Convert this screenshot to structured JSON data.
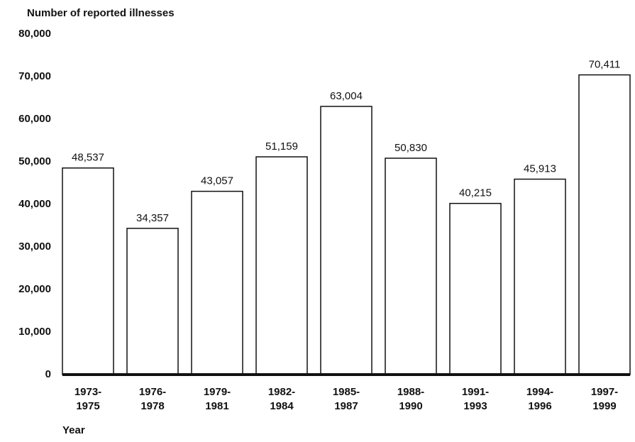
{
  "chart_data": {
    "type": "bar",
    "ylabel": "Number of reported illnesses",
    "xlabel": "Year",
    "categories": [
      "1973-\n1975",
      "1976-\n1978",
      "1979-\n1981",
      "1982-\n1984",
      "1985-\n1987",
      "1988-\n1990",
      "1991-\n1993",
      "1994-\n1996",
      "1997-\n1999"
    ],
    "values": [
      48537,
      34357,
      43057,
      51159,
      63004,
      50830,
      40215,
      45913,
      70411
    ],
    "value_labels": [
      "48,537",
      "34,357",
      "43,057",
      "51,159",
      "63,004",
      "50,830",
      "40,215",
      "45,913",
      "70,411"
    ],
    "color": "#ffffff",
    "ylim": [
      0,
      80000
    ],
    "yticks": [
      0,
      {
        "value": 10000,
        "label": "10,000"
      },
      {
        "value": 20000,
        "label": "20,000"
      },
      {
        "value": 30000,
        "label": "30,000"
      },
      {
        "value": 40000,
        "label": "40,000"
      },
      {
        "value": 50000,
        "label": "50,000"
      },
      {
        "value": 60000,
        "label": "60,000"
      },
      {
        "value": 70000,
        "label": "70,000"
      },
      {
        "value": 80000,
        "label": "80,000"
      }
    ],
    "grid": false
  }
}
